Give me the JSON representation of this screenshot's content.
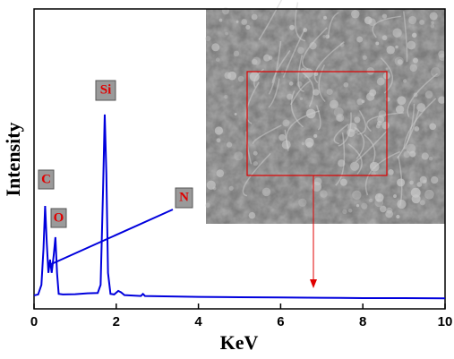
{
  "chart_data": {
    "type": "line",
    "xlabel": "KeV",
    "ylabel": "Intensity",
    "color": "#0000dd",
    "x": [
      0,
      0.1,
      0.18,
      0.23,
      0.27,
      0.31,
      0.35,
      0.39,
      0.43,
      0.48,
      0.52,
      0.56,
      0.6,
      0.7,
      1.0,
      1.3,
      1.55,
      1.62,
      1.68,
      1.72,
      1.76,
      1.8,
      1.86,
      1.95,
      2.05,
      2.12,
      2.2,
      2.6,
      2.65,
      2.7,
      3,
      4,
      5,
      6,
      7,
      8,
      9,
      10
    ],
    "values": [
      4.5,
      4.8,
      8,
      20,
      34.3,
      22,
      12,
      16.4,
      12,
      18,
      23.9,
      12,
      5,
      4.8,
      4.9,
      5.2,
      5.3,
      8,
      40,
      64.8,
      45,
      12,
      5,
      4.8,
      6,
      5.5,
      4.6,
      4.3,
      5,
      4.3,
      4.2,
      4.0,
      3.9,
      3.8,
      3.7,
      3.6,
      3.6,
      3.5
    ],
    "xlim": [
      0,
      10
    ],
    "xticks": [
      0,
      2,
      4,
      6,
      8,
      10
    ],
    "ylim": [
      0,
      100
    ],
    "annotations": [
      "C",
      "O",
      "Si",
      "N"
    ]
  }
}
